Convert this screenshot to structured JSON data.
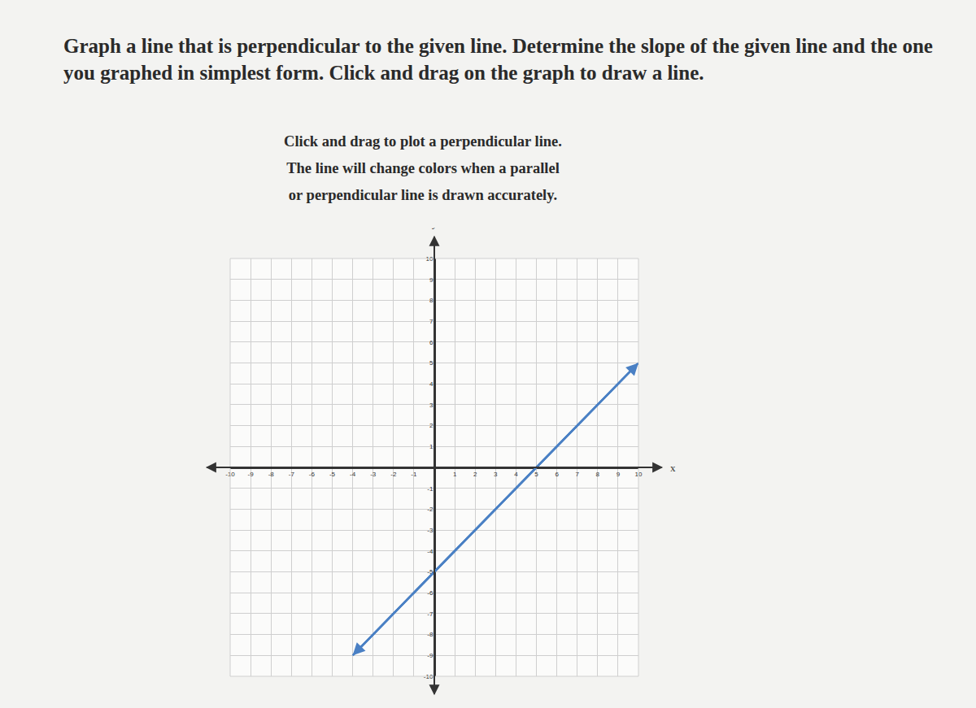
{
  "question": "Graph a line that is perpendicular to the given line. Determine the slope of the given line and the one you graphed in simplest form. Click and drag on the graph to draw a line.",
  "instructions": [
    "Click and drag to plot a perpendicular line.",
    "The line will change colors when a parallel",
    "or perpendicular line is drawn accurately."
  ],
  "chart_data": {
    "type": "line",
    "x_label": "x",
    "y_label": "y",
    "x": [
      -4,
      10
    ],
    "series": [
      {
        "values": [
          -9,
          5
        ],
        "color": "#4a80c4",
        "marker": "arrow"
      }
    ],
    "xlim": [
      -10,
      10
    ],
    "ylim": [
      -10,
      10
    ],
    "xticks": [
      -10,
      -9,
      -8,
      -7,
      -6,
      -5,
      -4,
      -3,
      -2,
      -1,
      1,
      2,
      3,
      4,
      5,
      6,
      7,
      8,
      9,
      10
    ],
    "yticks": [
      -10,
      -9,
      -8,
      -7,
      -6,
      -5,
      -4,
      -3,
      -2,
      -1,
      1,
      2,
      3,
      4,
      5,
      6,
      7,
      8,
      9,
      10
    ],
    "grid": true
  }
}
